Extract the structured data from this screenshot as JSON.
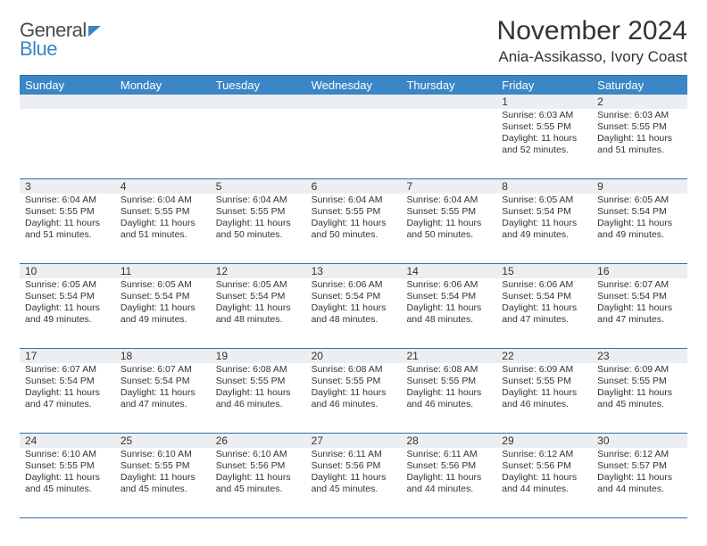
{
  "logo": {
    "general": "General",
    "blue": "Blue"
  },
  "title": "November 2024",
  "location": "Ania-Assikasso, Ivory Coast",
  "colors": {
    "header_bg": "#3b86c6",
    "border": "#2f6fa8",
    "daynum_bg": "#eceff1",
    "text": "#333333",
    "logo_blue": "#3b84c4"
  },
  "day_headers": [
    "Sunday",
    "Monday",
    "Tuesday",
    "Wednesday",
    "Thursday",
    "Friday",
    "Saturday"
  ],
  "weeks": [
    [
      {
        "n": "",
        "sunrise": "",
        "sunset": "",
        "daylight": ""
      },
      {
        "n": "",
        "sunrise": "",
        "sunset": "",
        "daylight": ""
      },
      {
        "n": "",
        "sunrise": "",
        "sunset": "",
        "daylight": ""
      },
      {
        "n": "",
        "sunrise": "",
        "sunset": "",
        "daylight": ""
      },
      {
        "n": "",
        "sunrise": "",
        "sunset": "",
        "daylight": ""
      },
      {
        "n": "1",
        "sunrise": "Sunrise: 6:03 AM",
        "sunset": "Sunset: 5:55 PM",
        "daylight": "Daylight: 11 hours and 52 minutes."
      },
      {
        "n": "2",
        "sunrise": "Sunrise: 6:03 AM",
        "sunset": "Sunset: 5:55 PM",
        "daylight": "Daylight: 11 hours and 51 minutes."
      }
    ],
    [
      {
        "n": "3",
        "sunrise": "Sunrise: 6:04 AM",
        "sunset": "Sunset: 5:55 PM",
        "daylight": "Daylight: 11 hours and 51 minutes."
      },
      {
        "n": "4",
        "sunrise": "Sunrise: 6:04 AM",
        "sunset": "Sunset: 5:55 PM",
        "daylight": "Daylight: 11 hours and 51 minutes."
      },
      {
        "n": "5",
        "sunrise": "Sunrise: 6:04 AM",
        "sunset": "Sunset: 5:55 PM",
        "daylight": "Daylight: 11 hours and 50 minutes."
      },
      {
        "n": "6",
        "sunrise": "Sunrise: 6:04 AM",
        "sunset": "Sunset: 5:55 PM",
        "daylight": "Daylight: 11 hours and 50 minutes."
      },
      {
        "n": "7",
        "sunrise": "Sunrise: 6:04 AM",
        "sunset": "Sunset: 5:55 PM",
        "daylight": "Daylight: 11 hours and 50 minutes."
      },
      {
        "n": "8",
        "sunrise": "Sunrise: 6:05 AM",
        "sunset": "Sunset: 5:54 PM",
        "daylight": "Daylight: 11 hours and 49 minutes."
      },
      {
        "n": "9",
        "sunrise": "Sunrise: 6:05 AM",
        "sunset": "Sunset: 5:54 PM",
        "daylight": "Daylight: 11 hours and 49 minutes."
      }
    ],
    [
      {
        "n": "10",
        "sunrise": "Sunrise: 6:05 AM",
        "sunset": "Sunset: 5:54 PM",
        "daylight": "Daylight: 11 hours and 49 minutes."
      },
      {
        "n": "11",
        "sunrise": "Sunrise: 6:05 AM",
        "sunset": "Sunset: 5:54 PM",
        "daylight": "Daylight: 11 hours and 49 minutes."
      },
      {
        "n": "12",
        "sunrise": "Sunrise: 6:05 AM",
        "sunset": "Sunset: 5:54 PM",
        "daylight": "Daylight: 11 hours and 48 minutes."
      },
      {
        "n": "13",
        "sunrise": "Sunrise: 6:06 AM",
        "sunset": "Sunset: 5:54 PM",
        "daylight": "Daylight: 11 hours and 48 minutes."
      },
      {
        "n": "14",
        "sunrise": "Sunrise: 6:06 AM",
        "sunset": "Sunset: 5:54 PM",
        "daylight": "Daylight: 11 hours and 48 minutes."
      },
      {
        "n": "15",
        "sunrise": "Sunrise: 6:06 AM",
        "sunset": "Sunset: 5:54 PM",
        "daylight": "Daylight: 11 hours and 47 minutes."
      },
      {
        "n": "16",
        "sunrise": "Sunrise: 6:07 AM",
        "sunset": "Sunset: 5:54 PM",
        "daylight": "Daylight: 11 hours and 47 minutes."
      }
    ],
    [
      {
        "n": "17",
        "sunrise": "Sunrise: 6:07 AM",
        "sunset": "Sunset: 5:54 PM",
        "daylight": "Daylight: 11 hours and 47 minutes."
      },
      {
        "n": "18",
        "sunrise": "Sunrise: 6:07 AM",
        "sunset": "Sunset: 5:54 PM",
        "daylight": "Daylight: 11 hours and 47 minutes."
      },
      {
        "n": "19",
        "sunrise": "Sunrise: 6:08 AM",
        "sunset": "Sunset: 5:55 PM",
        "daylight": "Daylight: 11 hours and 46 minutes."
      },
      {
        "n": "20",
        "sunrise": "Sunrise: 6:08 AM",
        "sunset": "Sunset: 5:55 PM",
        "daylight": "Daylight: 11 hours and 46 minutes."
      },
      {
        "n": "21",
        "sunrise": "Sunrise: 6:08 AM",
        "sunset": "Sunset: 5:55 PM",
        "daylight": "Daylight: 11 hours and 46 minutes."
      },
      {
        "n": "22",
        "sunrise": "Sunrise: 6:09 AM",
        "sunset": "Sunset: 5:55 PM",
        "daylight": "Daylight: 11 hours and 46 minutes."
      },
      {
        "n": "23",
        "sunrise": "Sunrise: 6:09 AM",
        "sunset": "Sunset: 5:55 PM",
        "daylight": "Daylight: 11 hours and 45 minutes."
      }
    ],
    [
      {
        "n": "24",
        "sunrise": "Sunrise: 6:10 AM",
        "sunset": "Sunset: 5:55 PM",
        "daylight": "Daylight: 11 hours and 45 minutes."
      },
      {
        "n": "25",
        "sunrise": "Sunrise: 6:10 AM",
        "sunset": "Sunset: 5:55 PM",
        "daylight": "Daylight: 11 hours and 45 minutes."
      },
      {
        "n": "26",
        "sunrise": "Sunrise: 6:10 AM",
        "sunset": "Sunset: 5:56 PM",
        "daylight": "Daylight: 11 hours and 45 minutes."
      },
      {
        "n": "27",
        "sunrise": "Sunrise: 6:11 AM",
        "sunset": "Sunset: 5:56 PM",
        "daylight": "Daylight: 11 hours and 45 minutes."
      },
      {
        "n": "28",
        "sunrise": "Sunrise: 6:11 AM",
        "sunset": "Sunset: 5:56 PM",
        "daylight": "Daylight: 11 hours and 44 minutes."
      },
      {
        "n": "29",
        "sunrise": "Sunrise: 6:12 AM",
        "sunset": "Sunset: 5:56 PM",
        "daylight": "Daylight: 11 hours and 44 minutes."
      },
      {
        "n": "30",
        "sunrise": "Sunrise: 6:12 AM",
        "sunset": "Sunset: 5:57 PM",
        "daylight": "Daylight: 11 hours and 44 minutes."
      }
    ]
  ]
}
